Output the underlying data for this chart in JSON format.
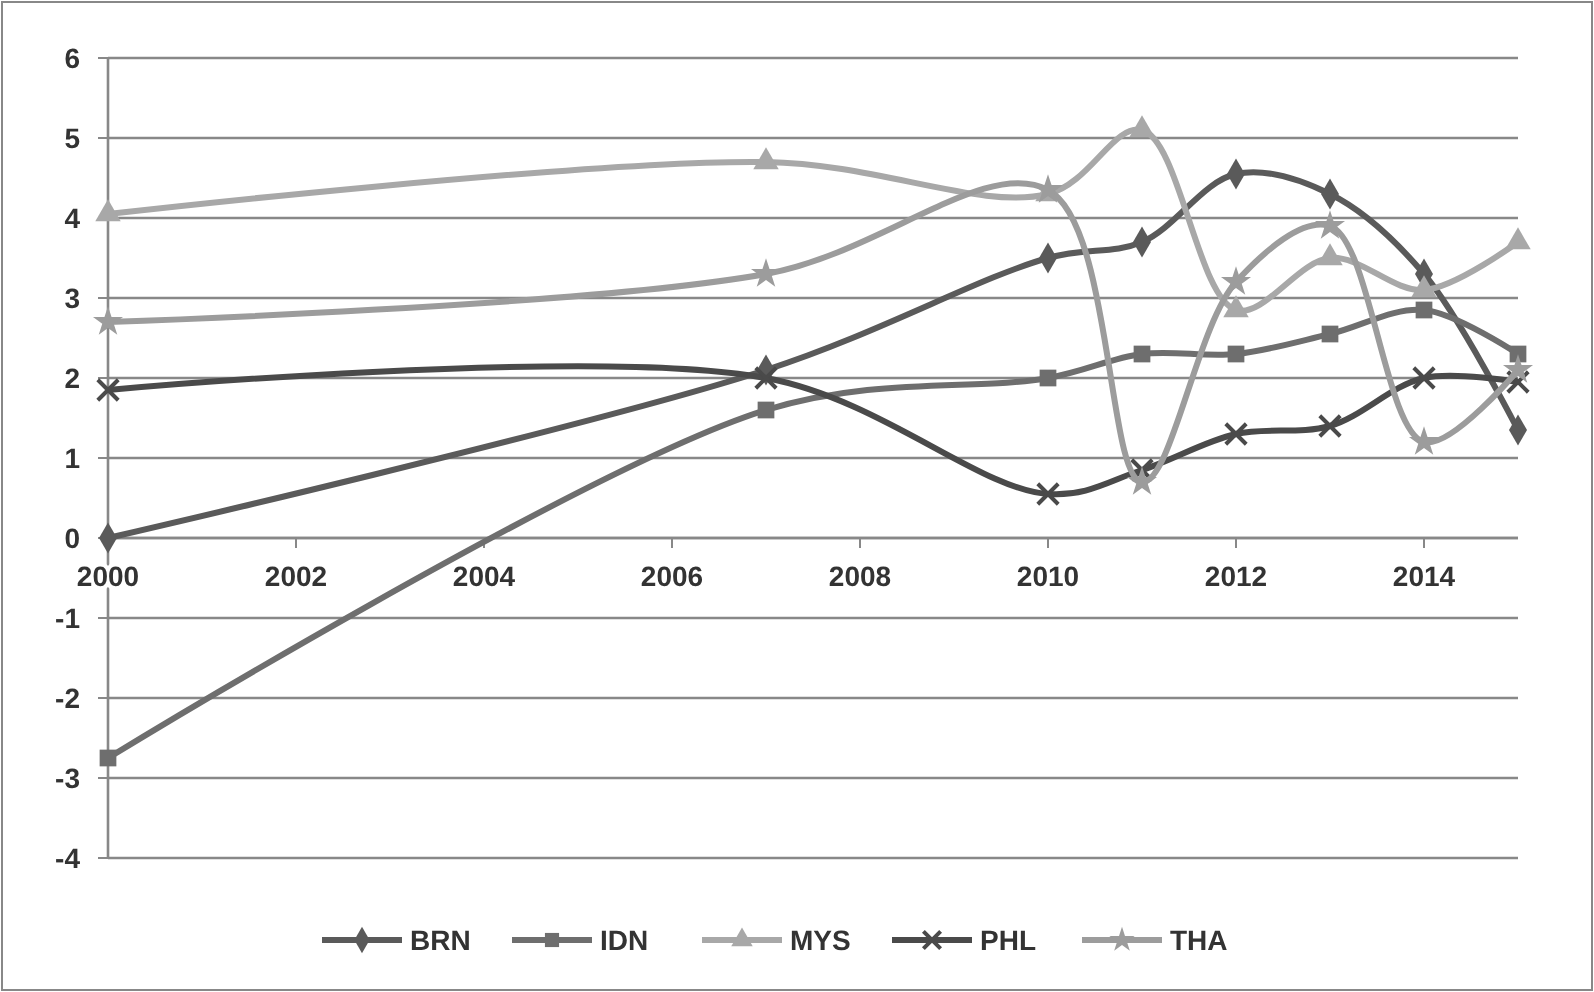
{
  "chart_data": {
    "type": "line",
    "x": [
      2000,
      2007,
      2010,
      2011,
      2012,
      2013,
      2014,
      2015
    ],
    "series": [
      {
        "name": "BRN",
        "color": "#5a5a5a",
        "marker": "diamond",
        "values": [
          0,
          2.1,
          3.5,
          3.7,
          4.55,
          4.3,
          3.3,
          1.35
        ]
      },
      {
        "name": "IDN",
        "color": "#6e6e6e",
        "marker": "square",
        "values": [
          -2.75,
          1.6,
          2.0,
          2.3,
          2.3,
          2.55,
          2.85,
          2.3
        ]
      },
      {
        "name": "MYS",
        "color": "#a8a8a8",
        "marker": "triangle",
        "values": [
          4.05,
          4.7,
          4.3,
          5.1,
          2.85,
          3.5,
          3.1,
          3.7
        ]
      },
      {
        "name": "PHL",
        "color": "#4a4a4a",
        "marker": "cross",
        "values": [
          1.85,
          2.0,
          0.55,
          0.85,
          1.3,
          1.4,
          2.0,
          1.95
        ]
      },
      {
        "name": "THA",
        "color": "#9c9c9c",
        "marker": "star",
        "values": [
          2.7,
          3.3,
          4.35,
          0.7,
          3.2,
          3.9,
          1.2,
          2.1
        ]
      }
    ],
    "xlim": [
      2000,
      2015
    ],
    "xticks": [
      2000,
      2002,
      2004,
      2006,
      2008,
      2010,
      2012,
      2014
    ],
    "ylim": [
      -4,
      6
    ],
    "yticks": [
      -4,
      -3,
      -2,
      -1,
      0,
      1,
      2,
      3,
      4,
      5,
      6
    ],
    "grid": "y",
    "legend": "bottom",
    "line_style": "solid"
  }
}
